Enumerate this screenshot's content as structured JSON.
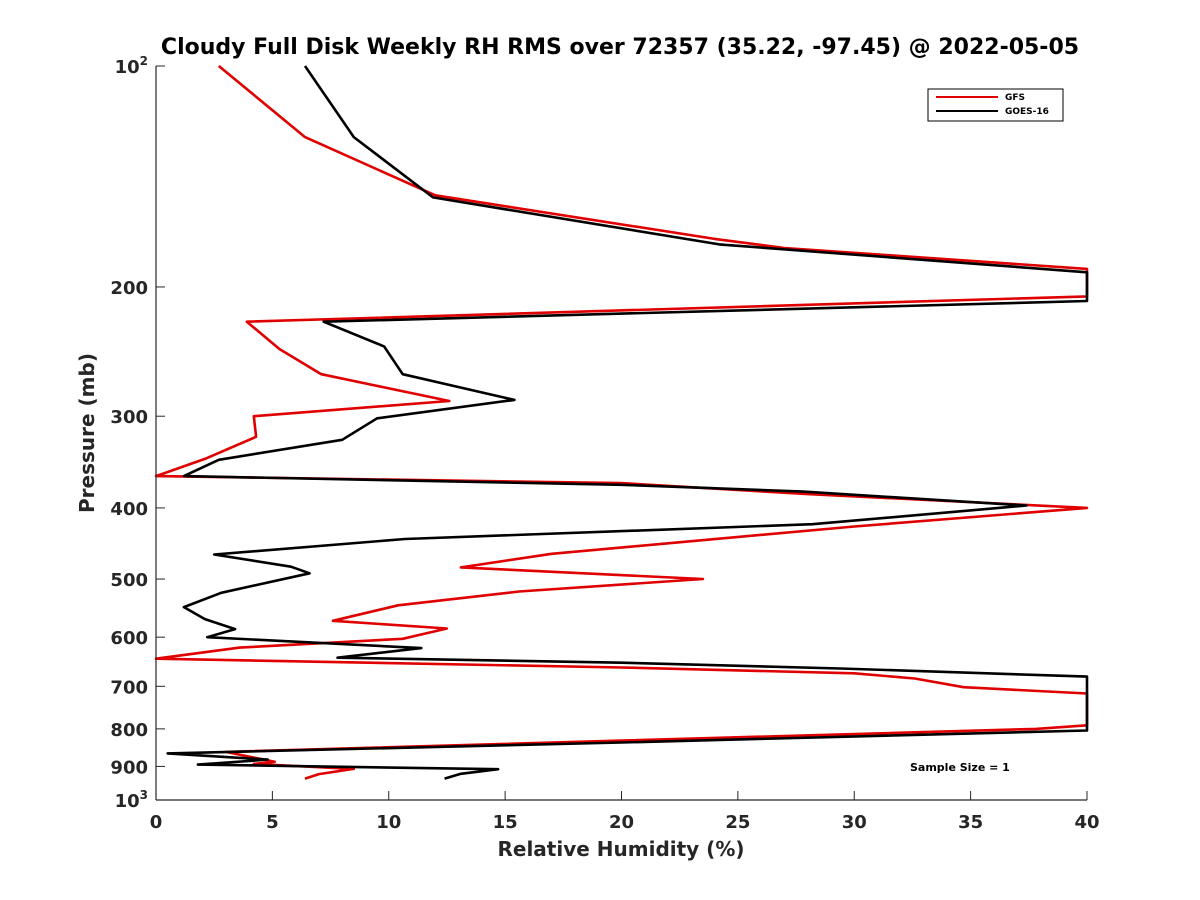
{
  "chart_data": {
    "type": "line",
    "title": "Cloudy Full Disk Weekly RH RMS over 72357 (35.22, -97.45) @ 2022-05-05",
    "xlabel": "Relative Humidity (%)",
    "ylabel": "Pressure (mb)",
    "xlim": [
      0,
      40
    ],
    "ylim": [
      100,
      1000
    ],
    "y_scale": "log",
    "y_reversed": true,
    "grid": false,
    "legend_position": "top-right",
    "x_ticks": [
      "0",
      "5",
      "10",
      "15",
      "20",
      "25",
      "30",
      "35",
      "40"
    ],
    "y_ticks": [
      {
        "value": 100,
        "base": "10",
        "exp": "2"
      },
      {
        "value": 200,
        "label": "200"
      },
      {
        "value": 300,
        "label": "300"
      },
      {
        "value": 400,
        "label": "400"
      },
      {
        "value": 500,
        "label": "500"
      },
      {
        "value": 600,
        "label": "600"
      },
      {
        "value": 700,
        "label": "700"
      },
      {
        "value": 800,
        "label": "800"
      },
      {
        "value": 900,
        "label": "900"
      },
      {
        "value": 1000,
        "base": "10",
        "exp": "3"
      }
    ],
    "series": [
      {
        "name": "GFS",
        "color": "#e00000",
        "points": [
          [
            2.7,
            100
          ],
          [
            6.4,
            125
          ],
          [
            12.0,
            150
          ],
          [
            24.0,
            172
          ],
          [
            27.0,
            177
          ],
          [
            40.0,
            189
          ],
          [
            40.0,
            206
          ],
          [
            3.9,
            223
          ],
          [
            5.3,
            243
          ],
          [
            7.1,
            263
          ],
          [
            12.6,
            286
          ],
          [
            4.2,
            300
          ],
          [
            4.3,
            320
          ],
          [
            2.1,
            343
          ],
          [
            0.0,
            362
          ],
          [
            20.0,
            370
          ],
          [
            28.0,
            383
          ],
          [
            40.0,
            400
          ],
          [
            30.0,
            424
          ],
          [
            17.0,
            462
          ],
          [
            13.1,
            482
          ],
          [
            23.5,
            500
          ],
          [
            15.6,
            520
          ],
          [
            10.4,
            543
          ],
          [
            7.6,
            570
          ],
          [
            12.5,
            584
          ],
          [
            10.6,
            603
          ],
          [
            3.6,
            620
          ],
          [
            0.0,
            642
          ],
          [
            20.0,
            660
          ],
          [
            30.0,
            672
          ],
          [
            32.6,
            683
          ],
          [
            34.7,
            702
          ],
          [
            40.0,
            716
          ],
          [
            40.0,
            791
          ],
          [
            37.8,
            800
          ],
          [
            20.0,
            830
          ],
          [
            3.0,
            860
          ],
          [
            5.1,
            887
          ],
          [
            4.2,
            893
          ],
          [
            8.5,
            907
          ],
          [
            7.0,
            922
          ],
          [
            6.4,
            935
          ]
        ]
      },
      {
        "name": "GOES-16",
        "color": "#000000",
        "points": [
          [
            6.4,
            100
          ],
          [
            8.5,
            125
          ],
          [
            11.9,
            151
          ],
          [
            24.2,
            175
          ],
          [
            40.0,
            191
          ],
          [
            40.0,
            209
          ],
          [
            7.2,
            223
          ],
          [
            9.8,
            241
          ],
          [
            10.6,
            263
          ],
          [
            15.4,
            285
          ],
          [
            9.5,
            302
          ],
          [
            8.0,
            323
          ],
          [
            2.7,
            344
          ],
          [
            1.2,
            362
          ],
          [
            20.0,
            372
          ],
          [
            27.8,
            380
          ],
          [
            37.4,
            397
          ],
          [
            28.2,
            421
          ],
          [
            10.7,
            441
          ],
          [
            2.5,
            463
          ],
          [
            5.8,
            481
          ],
          [
            6.6,
            491
          ],
          [
            2.8,
            522
          ],
          [
            1.2,
            546
          ],
          [
            2.1,
            567
          ],
          [
            3.4,
            585
          ],
          [
            2.2,
            600
          ],
          [
            11.4,
            621
          ],
          [
            7.8,
            640
          ],
          [
            20.0,
            650
          ],
          [
            29.4,
            662
          ],
          [
            40.0,
            679
          ],
          [
            40.0,
            804
          ],
          [
            20.0,
            835
          ],
          [
            0.5,
            864
          ],
          [
            4.8,
            881
          ],
          [
            1.8,
            895
          ],
          [
            14.7,
            908
          ],
          [
            13.1,
            921
          ],
          [
            12.4,
            935
          ]
        ]
      }
    ],
    "annotations": [
      "Sample Size = 1"
    ]
  }
}
